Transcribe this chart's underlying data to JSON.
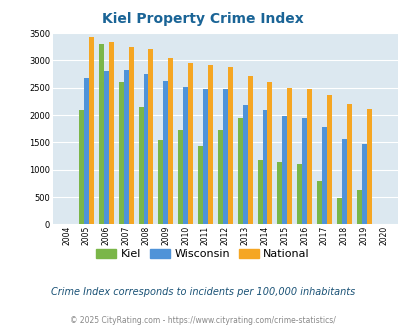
{
  "title": "Kiel Property Crime Index",
  "years": [
    2004,
    2005,
    2006,
    2007,
    2008,
    2009,
    2010,
    2011,
    2012,
    2013,
    2014,
    2015,
    2016,
    2017,
    2018,
    2019,
    2020
  ],
  "kiel": [
    null,
    2100,
    3300,
    2600,
    2150,
    1550,
    1720,
    1430,
    1720,
    1950,
    1170,
    1150,
    1100,
    800,
    490,
    630,
    null
  ],
  "wisconsin": [
    null,
    2680,
    2800,
    2830,
    2750,
    2620,
    2520,
    2470,
    2480,
    2190,
    2090,
    1990,
    1950,
    1790,
    1560,
    1470,
    null
  ],
  "national": [
    null,
    3420,
    3340,
    3250,
    3200,
    3040,
    2950,
    2920,
    2870,
    2720,
    2600,
    2490,
    2470,
    2370,
    2200,
    2110,
    null
  ],
  "kiel_color": "#7ab648",
  "wisconsin_color": "#4f93d8",
  "national_color": "#f5a623",
  "background_color": "#dce8f0",
  "ylim": [
    0,
    3500
  ],
  "yticks": [
    0,
    500,
    1000,
    1500,
    2000,
    2500,
    3000,
    3500
  ],
  "subtitle": "Crime Index corresponds to incidents per 100,000 inhabitants",
  "footer_text": "© 2025 CityRating.com - ",
  "footer_url": "https://www.cityrating.com/crime-statistics/",
  "title_color": "#1a6496",
  "subtitle_color": "#1a5276",
  "footer_color": "#888888",
  "footer_url_color": "#2980b9",
  "legend_labels": [
    "Kiel",
    "Wisconsin",
    "National"
  ]
}
